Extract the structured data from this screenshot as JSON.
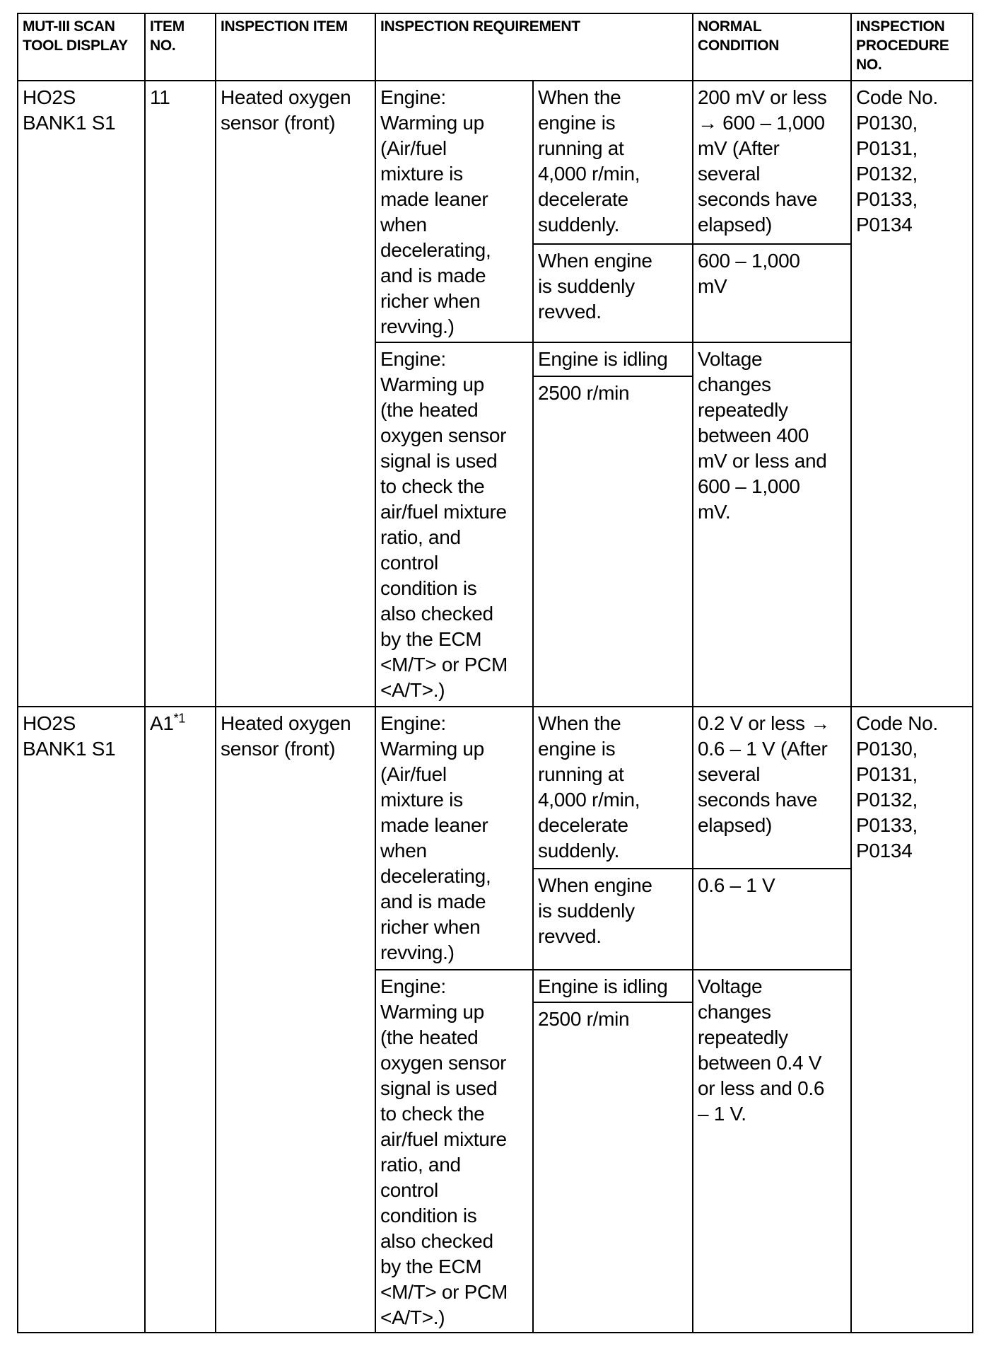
{
  "header": {
    "scan_tool_display": "MUT-III SCAN\nTOOL DISPLAY",
    "item_no": "ITEM\nNO.",
    "inspection_item": "INSPECTION ITEM",
    "inspection_requirement": "INSPECTION REQUIREMENT",
    "normal_condition": "NORMAL\nCONDITION",
    "inspection_procedure_no": "INSPECTION\nPROCEDURE\nNO."
  },
  "rows": [
    {
      "display": "HO2S\nBANK1 S1",
      "item_no": "11",
      "item_sup": "",
      "item": "Heated oxygen\nsensor (front)",
      "req1": "Engine:\nWarming up\n(Air/fuel\nmixture is\nmade leaner\nwhen\ndecelerating,\nand is made\nricher when\nrevving.)",
      "cond1a": "When the\nengine is\nrunning at\n4,000 r/min,\ndecelerate\nsuddenly.",
      "normal1a": "200 mV or less\n→ 600 – 1,000\nmV (After\nseveral\nseconds have\nelapsed)",
      "cond1b": "When engine\nis suddenly\nrevved.",
      "normal1b": "600 – 1,000\nmV",
      "req2": "Engine:\nWarming up\n(the heated\noxygen sensor\nsignal is used\nto check the\nair/fuel mixture\nratio, and\ncontrol\ncondition is\nalso checked\nby the ECM\n<M/T> or PCM\n<A/T>.)",
      "cond2a": "Engine is idling",
      "cond2b": "2500 r/min",
      "normal2": "Voltage\nchanges\nrepeatedly\nbetween 400\nmV or less and\n600 – 1,000\nmV.",
      "procedure": "Code No.\nP0130,\nP0131,\nP0132,\nP0133,\nP0134"
    },
    {
      "display": "HO2S\nBANK1 S1",
      "item_no": "A1",
      "item_sup": "*1",
      "item": "Heated oxygen\nsensor (front)",
      "req1": "Engine:\nWarming up\n(Air/fuel\nmixture is\nmade leaner\nwhen\ndecelerating,\nand is made\nricher when\nrevving.)",
      "cond1a": "When the\nengine is\nrunning at\n4,000 r/min,\ndecelerate\nsuddenly.",
      "normal1a": "0.2 V or less →\n0.6 – 1 V (After\nseveral\nseconds have\nelapsed)",
      "cond1b": "When engine\nis suddenly\nrevved.",
      "normal1b": "0.6 – 1 V",
      "req2": "Engine:\nWarming up\n(the heated\noxygen sensor\nsignal is used\nto check the\nair/fuel mixture\nratio, and\ncontrol\ncondition is\nalso checked\nby the ECM\n<M/T> or PCM\n<A/T>.)",
      "cond2a": "Engine is idling",
      "cond2b": "2500 r/min",
      "normal2": "Voltage\nchanges\nrepeatedly\nbetween 0.4 V\nor less and 0.6\n– 1 V.",
      "procedure": "Code No.\nP0130,\nP0131,\nP0132,\nP0133,\nP0134"
    }
  ]
}
